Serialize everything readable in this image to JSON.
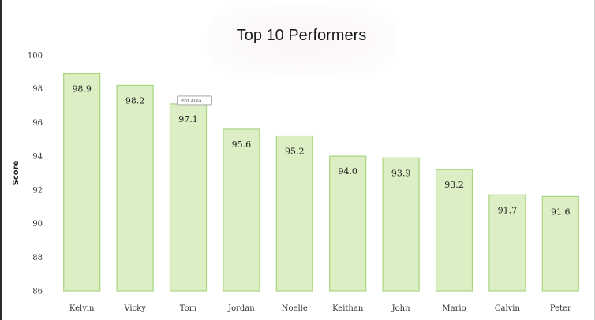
{
  "chart_data": {
    "type": "bar",
    "title": "Top 10 Performers",
    "ylabel": "Score",
    "xlabel": "",
    "categories": [
      "Kelvin",
      "Vicky",
      "Tom",
      "Jordan",
      "Noelle",
      "Keithan",
      "John",
      "Mario",
      "Calvin",
      "Peter"
    ],
    "values": [
      98.9,
      98.2,
      97.1,
      95.6,
      95.2,
      94.0,
      93.9,
      93.2,
      91.7,
      91.6
    ],
    "value_labels": [
      "98.9",
      "98.2",
      "97.1",
      "95.6",
      "95.2",
      "94.0",
      "93.9",
      "93.2",
      "91.7",
      "91.6"
    ],
    "ylim": [
      86,
      100
    ],
    "yticks": [
      86,
      88,
      90,
      92,
      94,
      96,
      98,
      100
    ],
    "grid": false,
    "legend": "none",
    "bar_fill": "#dcefc4",
    "bar_stroke": "#a9d47e",
    "tooltip": {
      "category": "Tom",
      "text": "Plot Area"
    }
  }
}
